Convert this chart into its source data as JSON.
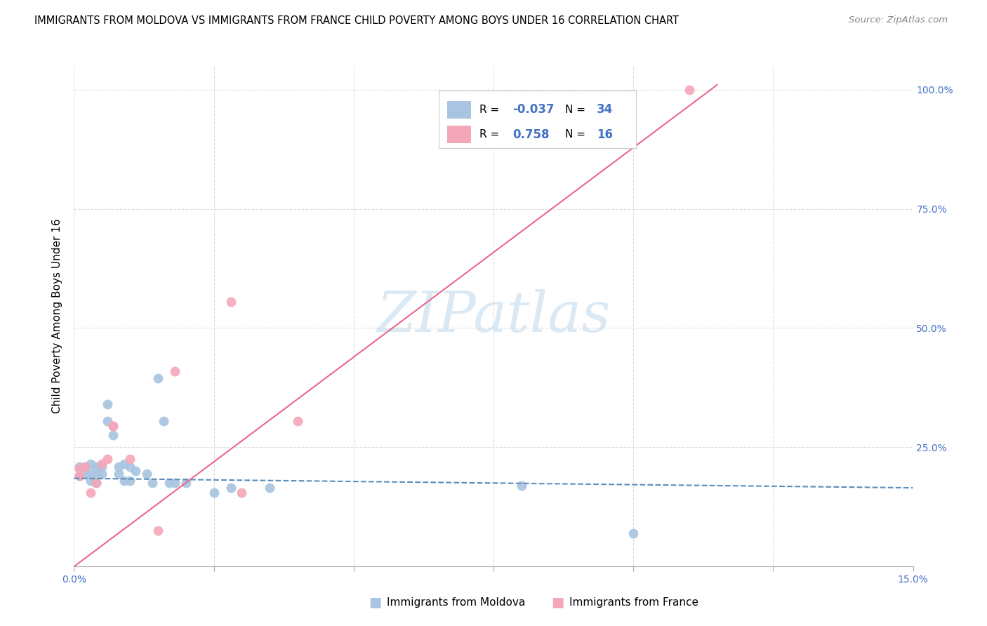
{
  "title": "IMMIGRANTS FROM MOLDOVA VS IMMIGRANTS FROM FRANCE CHILD POVERTY AMONG BOYS UNDER 16 CORRELATION CHART",
  "source": "Source: ZipAtlas.com",
  "ylabel": "Child Poverty Among Boys Under 16",
  "xlim": [
    0.0,
    0.15
  ],
  "ylim": [
    0.0,
    1.05
  ],
  "xticks": [
    0.0,
    0.025,
    0.05,
    0.075,
    0.1,
    0.125,
    0.15
  ],
  "xtick_labels": [
    "0.0%",
    "",
    "",
    "",
    "",
    "",
    "15.0%"
  ],
  "yticks": [
    0.0,
    0.25,
    0.5,
    0.75,
    1.0
  ],
  "ytick_labels": [
    "",
    "25.0%",
    "50.0%",
    "75.0%",
    "100.0%"
  ],
  "moldova_color": "#a8c4e0",
  "france_color": "#f4a7b9",
  "moldova_R": -0.037,
  "moldova_N": 34,
  "france_R": 0.758,
  "france_N": 16,
  "moldova_points": [
    [
      0.001,
      0.21
    ],
    [
      0.001,
      0.19
    ],
    [
      0.002,
      0.21
    ],
    [
      0.002,
      0.195
    ],
    [
      0.003,
      0.215
    ],
    [
      0.003,
      0.195
    ],
    [
      0.003,
      0.18
    ],
    [
      0.004,
      0.21
    ],
    [
      0.004,
      0.195
    ],
    [
      0.004,
      0.175
    ],
    [
      0.005,
      0.21
    ],
    [
      0.005,
      0.195
    ],
    [
      0.006,
      0.34
    ],
    [
      0.006,
      0.305
    ],
    [
      0.007,
      0.275
    ],
    [
      0.008,
      0.21
    ],
    [
      0.008,
      0.195
    ],
    [
      0.009,
      0.215
    ],
    [
      0.009,
      0.18
    ],
    [
      0.01,
      0.21
    ],
    [
      0.01,
      0.18
    ],
    [
      0.011,
      0.2
    ],
    [
      0.013,
      0.195
    ],
    [
      0.014,
      0.175
    ],
    [
      0.015,
      0.395
    ],
    [
      0.016,
      0.305
    ],
    [
      0.017,
      0.175
    ],
    [
      0.018,
      0.175
    ],
    [
      0.02,
      0.175
    ],
    [
      0.025,
      0.155
    ],
    [
      0.028,
      0.165
    ],
    [
      0.035,
      0.165
    ],
    [
      0.08,
      0.17
    ],
    [
      0.1,
      0.07
    ]
  ],
  "france_points": [
    [
      0.001,
      0.205
    ],
    [
      0.001,
      0.19
    ],
    [
      0.002,
      0.21
    ],
    [
      0.003,
      0.155
    ],
    [
      0.004,
      0.175
    ],
    [
      0.005,
      0.215
    ],
    [
      0.006,
      0.225
    ],
    [
      0.007,
      0.295
    ],
    [
      0.007,
      0.295
    ],
    [
      0.01,
      0.225
    ],
    [
      0.015,
      0.075
    ],
    [
      0.018,
      0.41
    ],
    [
      0.028,
      0.555
    ],
    [
      0.03,
      0.155
    ],
    [
      0.04,
      0.305
    ],
    [
      0.11,
      1.0
    ]
  ],
  "moldova_line_x": [
    0.0,
    0.15
  ],
  "moldova_line_y": [
    0.185,
    0.165
  ],
  "france_line_x": [
    0.0,
    0.115
  ],
  "france_line_y": [
    0.0,
    1.01
  ],
  "moldova_line_color": "#5b8db8",
  "france_line_color": "#e8698a",
  "watermark_text": "ZIPatlas",
  "watermark_color": "#cce0f0",
  "legend_R1": "R = ",
  "legend_V1": "-0.037",
  "legend_N1": "N = ",
  "legend_NV1": "34",
  "legend_R2": "R = ",
  "legend_V2": "0.758",
  "legend_N2": "N = ",
  "legend_NV2": "16",
  "legend_label1": "Immigrants from Moldova",
  "legend_label2": "Immigrants from France",
  "background_color": "#ffffff",
  "grid_color": "#dddddd",
  "axis_color": "#4472c4",
  "text_color": "#333333"
}
